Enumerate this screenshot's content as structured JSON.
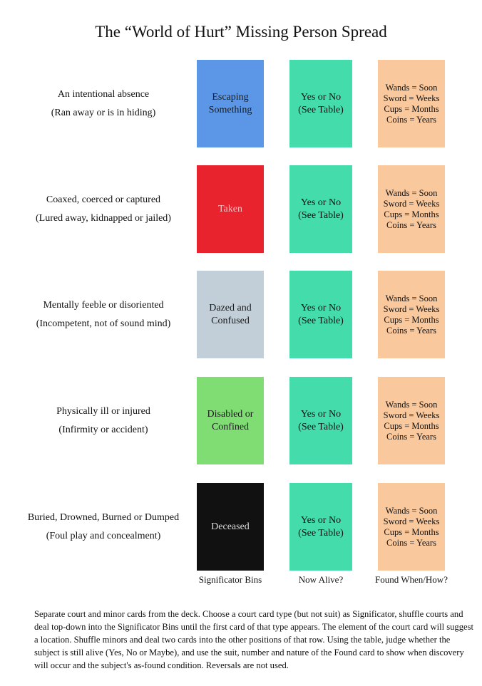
{
  "title": "The “World of Hurt” Missing Person Spread",
  "rows": [
    {
      "desc1": "An intentional absence",
      "desc2": "(Ran away or is in hiding)",
      "sig1": "Escaping",
      "sig2": "Something",
      "sig_color": "#5b97e6",
      "sig_text_color": "#1a1a1a"
    },
    {
      "desc1": "Coaxed, coerced or captured",
      "desc2": "(Lured away, kidnapped or jailed)",
      "sig1": "Taken",
      "sig2": "",
      "sig_color": "#e8232e",
      "sig_text_color": "#f4c0c0"
    },
    {
      "desc1": "Mentally feeble or disoriented",
      "desc2": "(Incompetent, not of sound mind)",
      "sig1": "Dazed and",
      "sig2": "Confused",
      "sig_color": "#c3cfd8",
      "sig_text_color": "#1a1a1a"
    },
    {
      "desc1": "Physically ill or injured",
      "desc2": "(Infirmity or accident)",
      "sig1": "Disabled or",
      "sig2": "Confined",
      "sig_color": "#7fdd74",
      "sig_text_color": "#1a1a1a"
    },
    {
      "desc1": "Buried, Drowned, Burned or Dumped",
      "desc2": "(Foul play and concealment)",
      "sig1": "Deceased",
      "sig2": "",
      "sig_color": "#111111",
      "sig_text_color": "#dddddd"
    }
  ],
  "alive": {
    "line1": "Yes or No",
    "line2": "(See Table)"
  },
  "found": [
    "Wands = Soon",
    "Sword = Weeks",
    "Cups = Months",
    "Coins = Years"
  ],
  "column_labels": [
    "Significator Bins",
    "Now Alive?",
    "Found When/How?"
  ],
  "instructions": "Separate court and minor cards from the deck. Choose a court card type (but not suit) as Significator, shuffle courts and deal top-down into the Significator Bins until the first card of that type appears. The element of the court card will suggest a location. Shuffle minors and deal two cards into the other positions of that row. Using the table, judge whether the subject is still alive (Yes, No or Maybe), and use the suit, number and nature of the Found card to show when discovery will occur and the subject's as-found condition. Reversals are not used."
}
